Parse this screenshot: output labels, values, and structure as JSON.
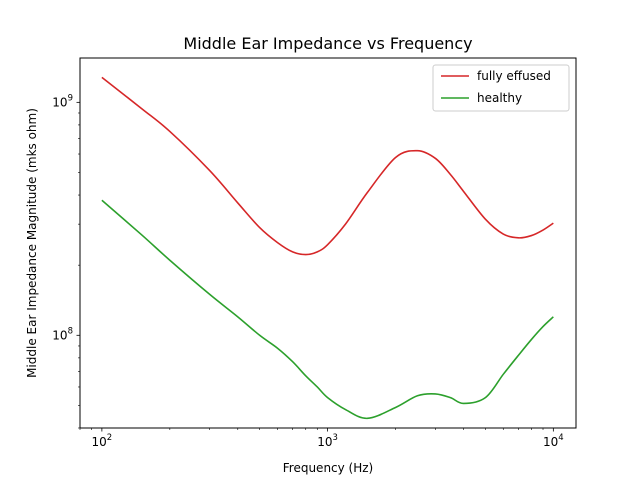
{
  "chart_data": {
    "type": "line",
    "title": "Middle Ear Impedance vs Frequency",
    "xlabel": "Frequency (Hz)",
    "ylabel": "Middle Ear Impedance Magnitude (mks ohm)",
    "xscale": "log",
    "yscale": "log",
    "xlim": [
      80,
      12600
    ],
    "ylim": [
      40000000,
      1550000000
    ],
    "grid": false,
    "legend_position": "top-right",
    "x_ticks": [
      {
        "value": 100,
        "base": "10",
        "exp": "2"
      },
      {
        "value": 1000,
        "base": "10",
        "exp": "3"
      },
      {
        "value": 10000,
        "base": "10",
        "exp": "4"
      }
    ],
    "y_ticks": [
      {
        "value": 100000000,
        "base": "10",
        "exp": "8"
      },
      {
        "value": 1000000000,
        "base": "10",
        "exp": "9"
      }
    ],
    "x": [
      100,
      150,
      200,
      300,
      400,
      500,
      600,
      700,
      800,
      900,
      1000,
      1200,
      1500,
      2000,
      2500,
      3000,
      3500,
      4000,
      5000,
      6000,
      7000,
      8000,
      9000,
      10000
    ],
    "series": [
      {
        "name": "fully effused",
        "color": "#d62728",
        "values": [
          1280000000,
          940000000,
          750000000,
          510000000,
          370000000,
          290000000,
          250000000,
          228000000,
          222000000,
          228000000,
          245000000,
          300000000,
          410000000,
          580000000,
          620000000,
          575000000,
          490000000,
          415000000,
          315000000,
          272000000,
          262000000,
          268000000,
          283000000,
          303000000
        ]
      },
      {
        "name": "healthy",
        "color": "#2ca02c",
        "values": [
          380000000,
          270000000,
          210000000,
          150000000,
          120000000,
          100000000,
          88000000,
          77000000,
          67000000,
          60000000,
          54000000,
          48000000,
          44000000,
          49000000,
          55000000,
          56000000,
          54000000,
          51000000,
          54000000,
          68000000,
          82000000,
          96000000,
          109000000,
          120000000
        ]
      }
    ]
  }
}
